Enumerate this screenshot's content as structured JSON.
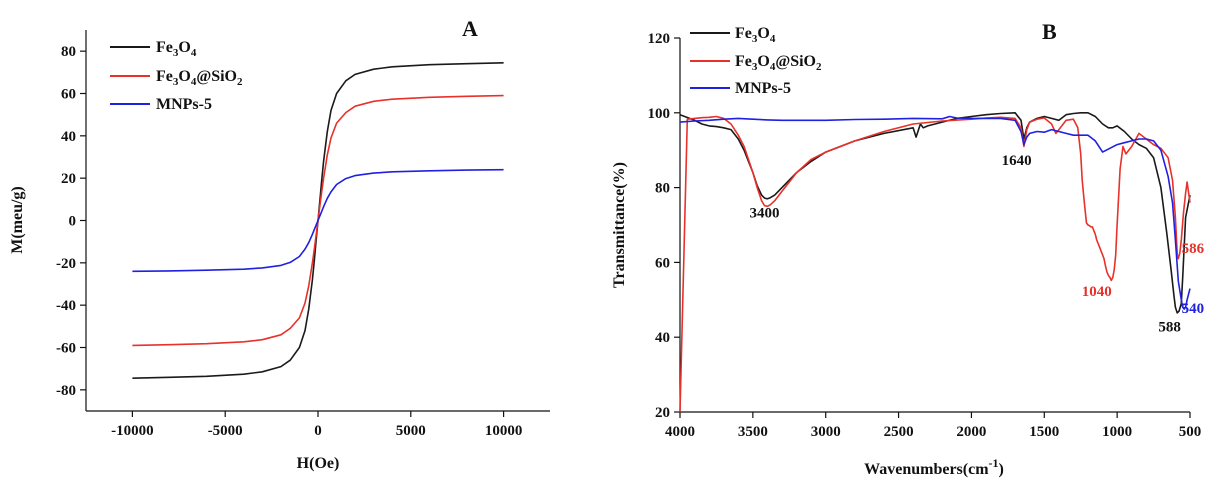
{
  "chart_data": [
    {
      "panel_label": "A",
      "type": "line",
      "xlabel": "H(Oe)",
      "ylabel": "M(meu/g)",
      "xlim": [
        -12500,
        12500
      ],
      "ylim": [
        -90,
        90
      ],
      "xticks": [
        -10000,
        -5000,
        0,
        5000,
        10000
      ],
      "yticks": [
        -80,
        -60,
        -40,
        -20,
        0,
        20,
        40,
        60,
        80
      ],
      "legend_position": "top-left",
      "series": [
        {
          "name": "Fe3O4",
          "name_base": "Fe",
          "name_sub1": "3",
          "name_mid": "O",
          "name_sub2": "4",
          "name_tail": "",
          "name_sub3": "",
          "color": "#1a1a1a",
          "x": [
            -10000,
            -8000,
            -6000,
            -4000,
            -3000,
            -2000,
            -1500,
            -1000,
            -700,
            -500,
            -300,
            -200,
            -100,
            0,
            100,
            200,
            300,
            500,
            700,
            1000,
            1500,
            2000,
            3000,
            4000,
            6000,
            8000,
            10000
          ],
          "y": [
            -74.5,
            -74.1,
            -73.6,
            -72.6,
            -71.5,
            -69,
            -66,
            -60,
            -52,
            -42,
            -28,
            -19,
            -9.5,
            0,
            9.5,
            19,
            28,
            42,
            52,
            60,
            66,
            69,
            71.5,
            72.6,
            73.6,
            74.1,
            74.5
          ]
        },
        {
          "name": "Fe3O4@SiO2",
          "name_base": "Fe",
          "name_sub1": "3",
          "name_mid": "O",
          "name_sub2": "4",
          "name_tail": "@SiO",
          "name_sub3": "2",
          "color": "#e8312a",
          "x": [
            -10000,
            -8000,
            -6000,
            -4000,
            -3000,
            -2000,
            -1500,
            -1000,
            -700,
            -500,
            -300,
            -200,
            -100,
            0,
            100,
            200,
            300,
            500,
            700,
            1000,
            1500,
            2000,
            3000,
            4000,
            6000,
            8000,
            10000
          ],
          "y": [
            -59,
            -58.7,
            -58.2,
            -57.3,
            -56.3,
            -54,
            -51,
            -46,
            -39,
            -31,
            -20,
            -13.5,
            -7,
            0,
            7,
            13.5,
            20,
            31,
            39,
            46,
            51,
            54,
            56.3,
            57.3,
            58.2,
            58.7,
            59
          ]
        },
        {
          "name": "MNPs-5",
          "name_base": "MNPs-5",
          "name_sub1": "",
          "name_mid": "",
          "name_sub2": "",
          "name_tail": "",
          "name_sub3": "",
          "color": "#2020e0",
          "x": [
            -10000,
            -8000,
            -6000,
            -4000,
            -3000,
            -2000,
            -1500,
            -1000,
            -700,
            -500,
            -300,
            -200,
            -100,
            0,
            100,
            200,
            300,
            500,
            700,
            1000,
            1500,
            2000,
            3000,
            4000,
            6000,
            8000,
            10000
          ],
          "y": [
            -24,
            -23.8,
            -23.5,
            -23,
            -22.4,
            -21.2,
            -19.8,
            -17,
            -13.5,
            -10.5,
            -6.5,
            -4.3,
            -2.2,
            0,
            2.2,
            4.3,
            6.5,
            10.5,
            13.5,
            17,
            19.8,
            21.2,
            22.4,
            23,
            23.5,
            23.8,
            24
          ]
        }
      ]
    },
    {
      "panel_label": "B",
      "type": "line",
      "xlabel_base": "Wavenumbers(cm",
      "xlabel_sup": "-1",
      "xlabel_tail": ")",
      "ylabel": "Transmittance(%)",
      "xlim": [
        4000,
        500
      ],
      "ylim": [
        20,
        120
      ],
      "xticks": [
        4000,
        3500,
        3000,
        2500,
        2000,
        1500,
        1000,
        500
      ],
      "yticks": [
        20,
        40,
        60,
        80,
        100,
        120
      ],
      "legend_position": "top-left",
      "annotations": [
        {
          "text": "3400",
          "x": 3420,
          "y": 72,
          "color": "#111111"
        },
        {
          "text": "1640",
          "x": 1690,
          "y": 86,
          "color": "#111111"
        },
        {
          "text": "1040",
          "x": 1140,
          "y": 51,
          "color": "#e8312a"
        },
        {
          "text": "588",
          "x": 640,
          "y": 41.5,
          "color": "#111111"
        },
        {
          "text": "586",
          "x": 480,
          "y": 62.5,
          "color": "#e8312a"
        },
        {
          "text": "540",
          "x": 480,
          "y": 46.5,
          "color": "#2020e0"
        }
      ],
      "series": [
        {
          "name": "Fe3O4",
          "name_base": "Fe",
          "name_sub1": "3",
          "name_mid": "O",
          "name_sub2": "4",
          "name_tail": "",
          "name_sub3": "",
          "color": "#1a1a1a",
          "x": [
            4000,
            3900,
            3850,
            3800,
            3750,
            3700,
            3650,
            3600,
            3560,
            3530,
            3500,
            3470,
            3440,
            3420,
            3400,
            3380,
            3350,
            3300,
            3250,
            3200,
            3100,
            3000,
            2800,
            2600,
            2400,
            2380,
            2350,
            2330,
            2300,
            2200,
            2100,
            2000,
            1900,
            1800,
            1700,
            1660,
            1640,
            1620,
            1600,
            1550,
            1500,
            1450,
            1400,
            1350,
            1300,
            1250,
            1200,
            1150,
            1100,
            1060,
            1030,
            1000,
            950,
            900,
            850,
            800,
            750,
            700,
            660,
            630,
            610,
            600,
            588,
            575,
            560,
            550,
            530,
            500
          ],
          "y": [
            99.5,
            98,
            97,
            96.5,
            96.3,
            96,
            95.5,
            93,
            90,
            87,
            84,
            80.5,
            78,
            77.2,
            77,
            77.3,
            78,
            80,
            82,
            84,
            87,
            89.5,
            92.5,
            94.5,
            96,
            93.5,
            97,
            96,
            96.5,
            97.5,
            98.5,
            99,
            99.5,
            99.8,
            100,
            98,
            93,
            96,
            97.5,
            98.5,
            99,
            98.5,
            98,
            99.5,
            99.8,
            100,
            100,
            99,
            97,
            96,
            96,
            96.5,
            95,
            93,
            91.5,
            90.5,
            88,
            80,
            68,
            58,
            51,
            48,
            46.5,
            47,
            49,
            56,
            72,
            78
          ]
        },
        {
          "name": "Fe3O4@SiO2",
          "name_base": "Fe",
          "name_sub1": "3",
          "name_mid": "O",
          "name_sub2": "4",
          "name_tail": "@SiO",
          "name_sub3": "2",
          "color": "#e8312a",
          "x": [
            4000,
            3950,
            3900,
            3850,
            3800,
            3750,
            3700,
            3650,
            3600,
            3560,
            3530,
            3500,
            3470,
            3440,
            3420,
            3400,
            3380,
            3350,
            3300,
            3250,
            3200,
            3100,
            3000,
            2800,
            2600,
            2400,
            2200,
            2000,
            1900,
            1800,
            1700,
            1660,
            1640,
            1620,
            1600,
            1550,
            1500,
            1450,
            1420,
            1400,
            1350,
            1300,
            1270,
            1250,
            1240,
            1230,
            1220,
            1210,
            1200,
            1190,
            1180,
            1170,
            1160,
            1150,
            1140,
            1130,
            1120,
            1110,
            1100,
            1090,
            1080,
            1070,
            1060,
            1050,
            1040,
            1030,
            1020,
            1010,
            1000,
            980,
            960,
            940,
            900,
            850,
            800,
            750,
            700,
            650,
            620,
            600,
            590,
            586,
            580,
            570,
            560,
            545,
            530,
            520,
            500
          ],
          "y": [
            20,
            98.3,
            98.5,
            98.7,
            98.8,
            99,
            98.5,
            97,
            94,
            91,
            87.5,
            84,
            80,
            76.5,
            75.2,
            75,
            75.4,
            76.5,
            79,
            81.5,
            84,
            87.5,
            89.5,
            92.5,
            95,
            97,
            97.8,
            98.3,
            98.6,
            98.8,
            98.5,
            96,
            91,
            95.5,
            97.5,
            98.3,
            98.6,
            97,
            94.5,
            95.5,
            98,
            98.3,
            96,
            89,
            82,
            78,
            74,
            70.5,
            70,
            69.8,
            69.5,
            69.5,
            68.5,
            67.5,
            66,
            65,
            64,
            63,
            62,
            61,
            59,
            57.5,
            56.5,
            56,
            55.2,
            56,
            58,
            62,
            70,
            85,
            91,
            89,
            91,
            94.5,
            93,
            91.5,
            90.5,
            88,
            82,
            72,
            64,
            61.5,
            61,
            62.5,
            66,
            73,
            78.5,
            81.5,
            76
          ]
        },
        {
          "name": "MNPs-5",
          "name_base": "MNPs-5",
          "name_sub1": "",
          "name_mid": "",
          "name_sub2": "",
          "name_tail": "",
          "name_sub3": "",
          "color": "#2020e0",
          "x": [
            4000,
            3900,
            3800,
            3700,
            3600,
            3500,
            3400,
            3300,
            3200,
            3000,
            2800,
            2600,
            2400,
            2200,
            2150,
            2100,
            2000,
            1900,
            1800,
            1700,
            1660,
            1640,
            1620,
            1600,
            1550,
            1500,
            1450,
            1400,
            1350,
            1300,
            1250,
            1200,
            1150,
            1100,
            1050,
            1000,
            950,
            900,
            850,
            800,
            750,
            700,
            650,
            620,
            600,
            580,
            560,
            550,
            540,
            530,
            520,
            500
          ],
          "y": [
            97.5,
            97.8,
            98,
            98.3,
            98.5,
            98.3,
            98.1,
            98,
            98,
            98,
            98.2,
            98.3,
            98.5,
            98.4,
            99,
            98.6,
            98.5,
            98.5,
            98.5,
            98,
            95,
            91.5,
            93.5,
            94.5,
            95,
            94.8,
            95.5,
            95,
            94.5,
            94,
            94,
            94,
            92.5,
            89.5,
            90.5,
            91.5,
            92,
            92.5,
            93,
            93,
            92.5,
            90,
            83,
            76,
            66,
            55,
            50,
            48,
            47.5,
            48,
            50,
            53
          ]
        }
      ]
    }
  ]
}
